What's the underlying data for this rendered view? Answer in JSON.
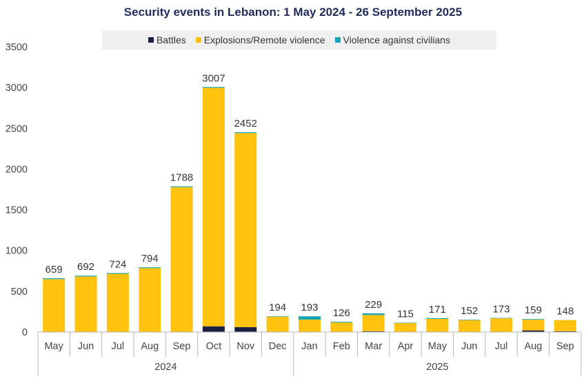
{
  "colors": {
    "battles": "#1c1f44",
    "explosions": "#ffc20e",
    "civilians": "#12a6b4",
    "axis": "#b5b5b5"
  },
  "chart_data": {
    "type": "bar",
    "stacked": true,
    "title": "Security events in Lebanon: 1 May 2024 - 26 September 2025",
    "ylim": [
      0,
      3500
    ],
    "yticks": [
      0,
      500,
      1000,
      1500,
      2000,
      2500,
      3000,
      3500
    ],
    "categories": [
      "May",
      "Jun",
      "Jul",
      "Aug",
      "Sep",
      "Oct",
      "Nov",
      "Dec",
      "Jan",
      "Feb",
      "Mar",
      "Apr",
      "May",
      "Jun",
      "Jul",
      "Aug",
      "Sep"
    ],
    "groups": [
      {
        "label": "2024",
        "count": 8
      },
      {
        "label": "2025",
        "count": 9
      }
    ],
    "series": [
      {
        "name": "Battles",
        "values": [
          0,
          0,
          0,
          0,
          0,
          70,
          60,
          0,
          0,
          0,
          10,
          0,
          0,
          0,
          0,
          20,
          10
        ]
      },
      {
        "name": "Explosions/Remote violence",
        "values": [
          649,
          682,
          714,
          784,
          1778,
          2927,
          2382,
          189,
          153,
          118,
          199,
          110,
          161,
          147,
          168,
          131,
          137
        ]
      },
      {
        "name": "Violence against civilians",
        "values": [
          10,
          10,
          10,
          10,
          10,
          10,
          10,
          5,
          40,
          8,
          20,
          5,
          10,
          5,
          5,
          8,
          1
        ]
      }
    ],
    "totals": [
      659,
      692,
      724,
      794,
      1788,
      3007,
      2452,
      194,
      193,
      126,
      229,
      115,
      171,
      152,
      173,
      159,
      148
    ]
  }
}
